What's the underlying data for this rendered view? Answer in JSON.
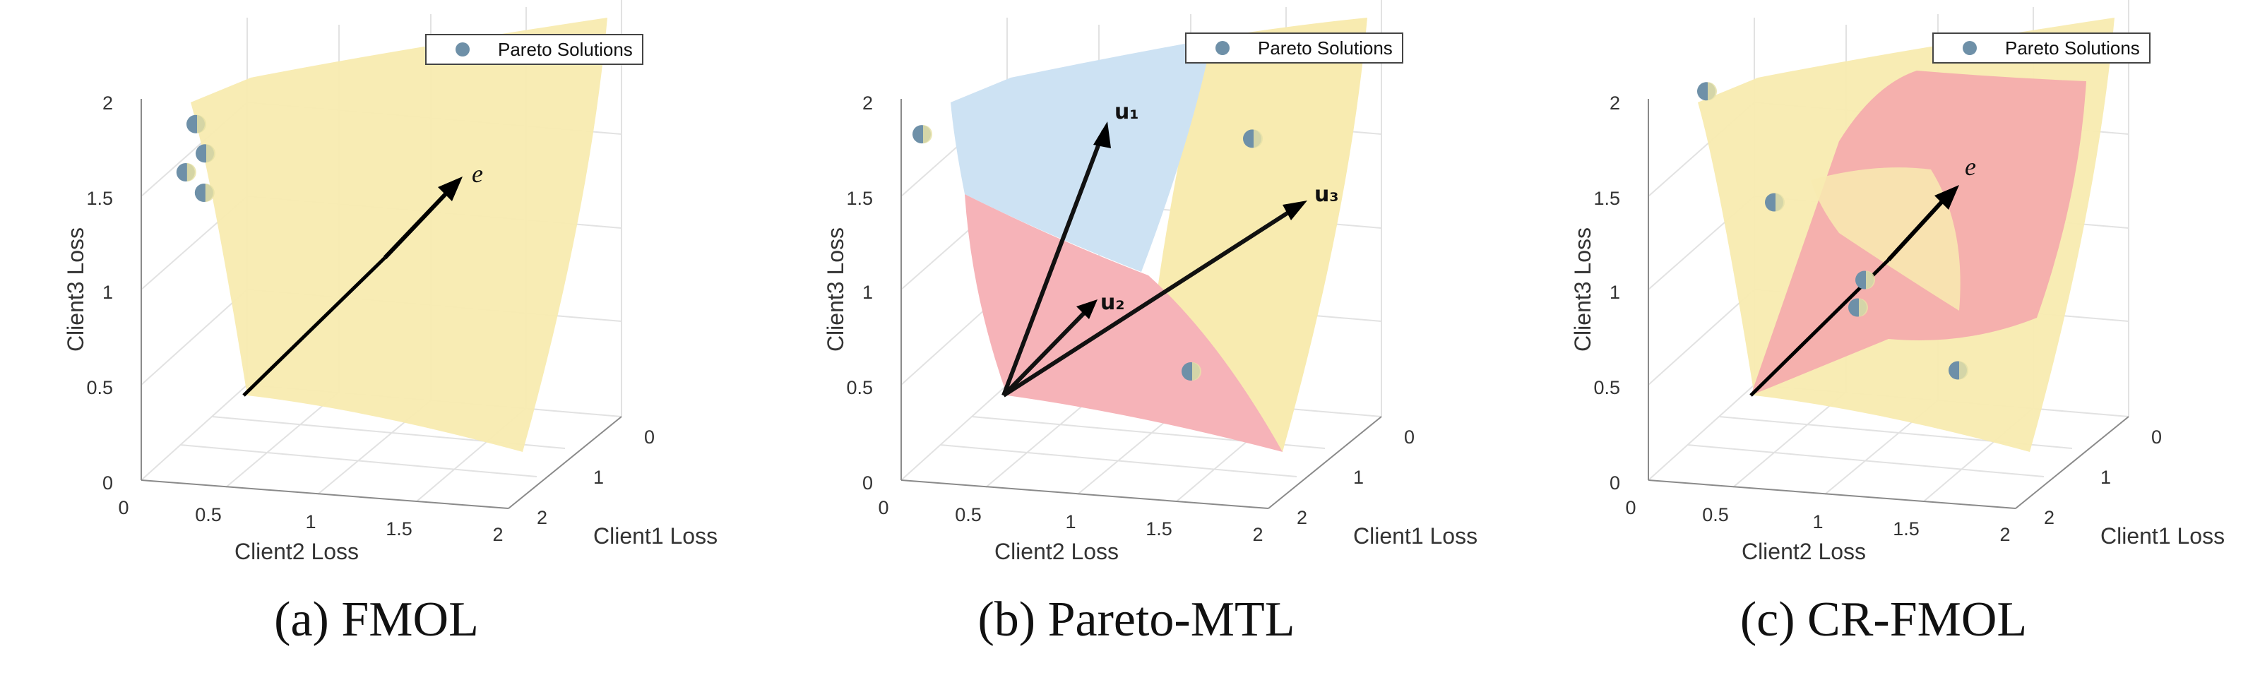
{
  "chart_data": [
    {
      "type": "scatter",
      "caption": "(a) FMOL",
      "xlabel": "Client1 Loss",
      "ylabel": "Client2 Loss",
      "zlabel": "Client3 Loss",
      "x_ticks": [
        "0",
        "1",
        "2"
      ],
      "y_ticks": [
        "0",
        "0.5",
        "1",
        "1.5",
        "2"
      ],
      "z_ticks": [
        "0",
        "0.5",
        "1",
        "1.5",
        "2"
      ],
      "legend": "Pareto Solutions",
      "legend_position": "top-right",
      "grid": true,
      "colors": {
        "surface": "#f8ebb0",
        "point": "#6e90a8",
        "point_highlight": "#e8e2a4"
      },
      "surfaces": [
        {
          "color": "#f8ebb0"
        }
      ],
      "vectors": [
        {
          "label": "e⃗",
          "target": [
            1.1,
            1.1,
            1.1
          ]
        }
      ],
      "points": [
        [
          0.15,
          0.25,
          1.85
        ],
        [
          0.15,
          0.3,
          1.7
        ],
        [
          0.2,
          0.18,
          1.58
        ],
        [
          0.2,
          0.28,
          1.48
        ]
      ]
    },
    {
      "type": "scatter",
      "caption": "(b) Pareto-MTL",
      "xlabel": "Client1 Loss",
      "ylabel": "Client2 Loss",
      "zlabel": "Client3 Loss",
      "x_ticks": [
        "0",
        "1",
        "2"
      ],
      "y_ticks": [
        "0",
        "0.5",
        "1",
        "1.5",
        "2"
      ],
      "z_ticks": [
        "0",
        "0.5",
        "1",
        "1.5",
        "2"
      ],
      "legend": "Pareto Solutions",
      "legend_position": "top-right",
      "grid": true,
      "colors": {
        "region_u1": "#cde2f3",
        "region_u2": "#f6b3b8",
        "region_u3": "#f8ebb0",
        "point": "#6e90a8"
      },
      "vectors": [
        {
          "label": "u₁",
          "target": [
            0.4,
            0.8,
            1.8
          ]
        },
        {
          "label": "u₂",
          "target": [
            0.3,
            0.6,
            0.9
          ]
        },
        {
          "label": "u₃",
          "target": [
            1.7,
            1.7,
            1.5
          ]
        }
      ],
      "points": [
        [
          0.2,
          0.05,
          1.77
        ],
        [
          0.2,
          1.85,
          1.88
        ],
        [
          0.9,
          1.3,
          0.45
        ]
      ]
    },
    {
      "type": "scatter",
      "caption": "(c) CR-FMOL",
      "xlabel": "Client1 Loss",
      "ylabel": "Client2 Loss",
      "zlabel": "Client3 Loss",
      "x_ticks": [
        "0",
        "1",
        "2"
      ],
      "y_ticks": [
        "0",
        "0.5",
        "1",
        "1.5",
        "2"
      ],
      "z_ticks": [
        "0",
        "0.5",
        "1",
        "1.5",
        "2"
      ],
      "legend": "Pareto Solutions",
      "legend_position": "top-right",
      "grid": true,
      "colors": {
        "surface": "#f8ebb0",
        "cone": "#f4a6ac",
        "point": "#6e90a8"
      },
      "vectors": [
        {
          "label": "e⃗",
          "target": [
            1.1,
            1.1,
            1.1
          ]
        }
      ],
      "points": [
        [
          0.05,
          0.3,
          2.05
        ],
        [
          0.6,
          0.5,
          1.35
        ],
        [
          0.9,
          0.9,
          0.9
        ],
        [
          1.1,
          0.8,
          0.7
        ],
        [
          1.9,
          1.1,
          0.2
        ]
      ]
    }
  ]
}
